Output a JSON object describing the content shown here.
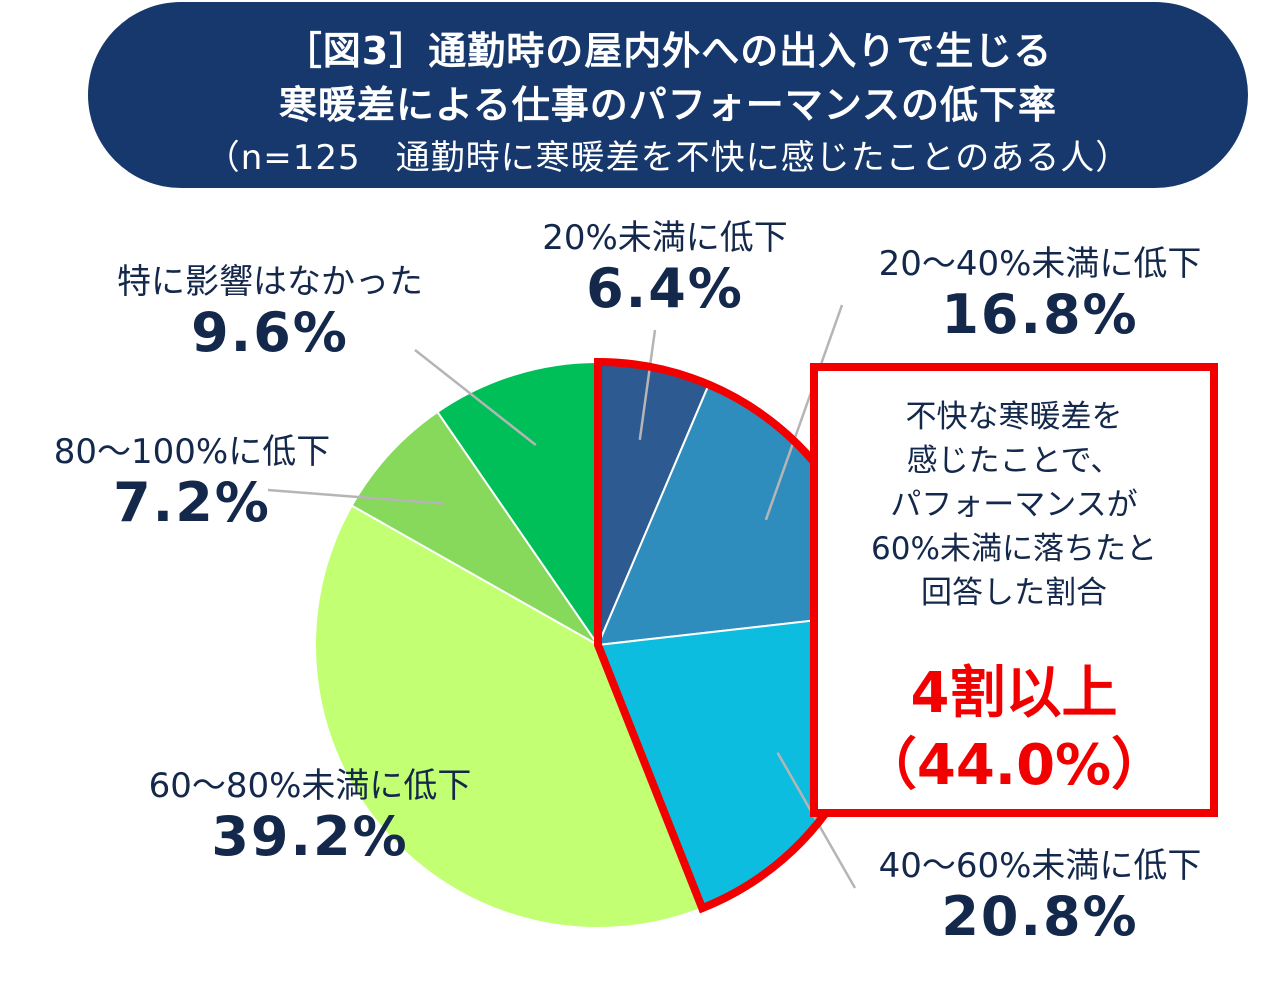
{
  "header": {
    "line1": "［図3］通勤時の屋内外への出入りで生じる",
    "line2": "寒暖差による仕事のパフォーマンスの低下率",
    "line3": "（n=125　通勤時に寒暖差を不快に感じたことのある人）"
  },
  "chart_data": {
    "type": "pie",
    "title": "［図3］通勤時の屋内外への出入りで生じる寒暖差による仕事のパフォーマンスの低下率",
    "subtitle": "（n=125　通勤時に寒暖差を不快に感じたことのある人）",
    "slices": [
      {
        "label": "20%未満に低下",
        "pct_label": "6.4%",
        "value": 6.4,
        "color": "#2e5a92"
      },
      {
        "label": "20～40%未満に低下",
        "pct_label": "16.8%",
        "value": 16.8,
        "color": "#2f8dbd"
      },
      {
        "label": "40～60%未満に低下",
        "pct_label": "20.8%",
        "value": 20.8,
        "color": "#0cbde0"
      },
      {
        "label": "60～80%未満に低下",
        "pct_label": "39.2%",
        "value": 39.2,
        "color": "#c2ff72"
      },
      {
        "label": "80～100%に低下",
        "pct_label": "7.2%",
        "value": 7.2,
        "color": "#86d95a"
      },
      {
        "label": "特に影響はなかった",
        "pct_label": "9.6%",
        "value": 9.6,
        "color": "#00bf59"
      }
    ],
    "highlight_color": "#f20000"
  },
  "callout": {
    "line1": "不快な寒暖差を",
    "line2": "感じたことで、",
    "line3": "パフォーマンスが",
    "line4": "60%未満に落ちたと",
    "line5": "回答した割合",
    "headline": "4割以上",
    "value": "（44.0%）"
  }
}
